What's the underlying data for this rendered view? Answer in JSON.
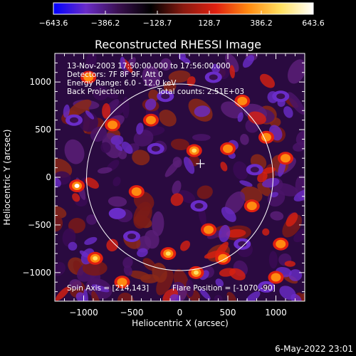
{
  "colorbar": {
    "tick_labels": [
      "−643.6",
      "−386.2",
      "−128.7",
      "128.7",
      "386.2",
      "643.6"
    ],
    "range": [
      -643.6,
      643.6
    ],
    "colors": [
      "#0000ff",
      "#6a2cc8",
      "#3a1050",
      "#000000",
      "#8a1a10",
      "#e02010",
      "#ff8a10",
      "#ffe060",
      "#ffffff"
    ]
  },
  "title": "Reconstructed RHESSI Image",
  "annotations": {
    "time_range": "13-Nov-2003 17:50:00.000 to 17:56:00.000",
    "detectors": "Detectors: 7F 8F 9F, Att 0",
    "energy": "Energy Range: 6.0 - 12.0 keV",
    "method": "Back Projection",
    "total_counts": "Total counts: 2.51E+03",
    "spin_axis": "Spin Axis = [214,143]",
    "flare_position": "Flare Position = [-1070,-90]"
  },
  "timestamp": "6-May-2022 23:01",
  "colors": {
    "background": "#000000",
    "axes": "#ffffff",
    "limb_circle": "#ffffff"
  },
  "chart_data": {
    "type": "heatmap",
    "title": "Reconstructed RHESSI Image",
    "xlabel": "Heliocentric X (arcsec)",
    "ylabel": "Heliocentric Y (arcsec)",
    "xlim": [
      -1300,
      1300
    ],
    "ylim": [
      -1300,
      1300
    ],
    "x_ticks": [
      -1000,
      -500,
      0,
      500,
      1000
    ],
    "y_ticks": [
      -1000,
      -500,
      0,
      500,
      1000
    ],
    "x_tick_labels": [
      "−1000",
      "−500",
      "0",
      "500",
      "1000"
    ],
    "y_tick_labels": [
      "−1000",
      "−500",
      "0",
      "500",
      "1000"
    ],
    "value_range": [
      -643.6,
      643.6
    ],
    "limb_center": [
      0,
      0
    ],
    "limb_radius": 970,
    "cross_marker": [
      214,
      143
    ],
    "peaks": [
      {
        "x": -1070,
        "y": -90,
        "value": 643.6
      },
      {
        "x": 170,
        "y": -1000,
        "value": 560
      },
      {
        "x": -120,
        "y": -800,
        "value": 460
      },
      {
        "x": -880,
        "y": -850,
        "value": 420
      },
      {
        "x": 150,
        "y": 280,
        "value": 520
      },
      {
        "x": 500,
        "y": 300,
        "value": 400
      },
      {
        "x": 1050,
        "y": -700,
        "value": 380
      },
      {
        "x": -700,
        "y": 550,
        "value": 360
      },
      {
        "x": 900,
        "y": 420,
        "value": 300
      },
      {
        "x": 750,
        "y": -300,
        "value": 330
      },
      {
        "x": -450,
        "y": -150,
        "value": 280
      },
      {
        "x": -300,
        "y": 600,
        "value": 300
      },
      {
        "x": 650,
        "y": 800,
        "value": 260
      },
      {
        "x": 1100,
        "y": 200,
        "value": 300
      },
      {
        "x": 300,
        "y": -550,
        "value": 290
      },
      {
        "x": -950,
        "y": 1050,
        "value": 280
      },
      {
        "x": 1000,
        "y": -1050,
        "value": 310
      },
      {
        "x": -600,
        "y": -1100,
        "value": 250
      },
      {
        "x": 450,
        "y": -850,
        "value": 300
      }
    ],
    "troughs": [
      {
        "x": -650,
        "y": -380,
        "value": -420
      },
      {
        "x": 650,
        "y": -700,
        "value": -380
      },
      {
        "x": -150,
        "y": 850,
        "value": -350
      },
      {
        "x": 1050,
        "y": 850,
        "value": -400
      },
      {
        "x": 350,
        "y": 1050,
        "value": -380
      },
      {
        "x": 780,
        "y": 80,
        "value": -300
      },
      {
        "x": -1100,
        "y": 600,
        "value": -330
      },
      {
        "x": -500,
        "y": -620,
        "value": -300
      },
      {
        "x": 200,
        "y": -300,
        "value": -260
      },
      {
        "x": -250,
        "y": 300,
        "value": -250
      },
      {
        "x": 900,
        "y": -1150,
        "value": -300
      }
    ],
    "grid": false
  }
}
